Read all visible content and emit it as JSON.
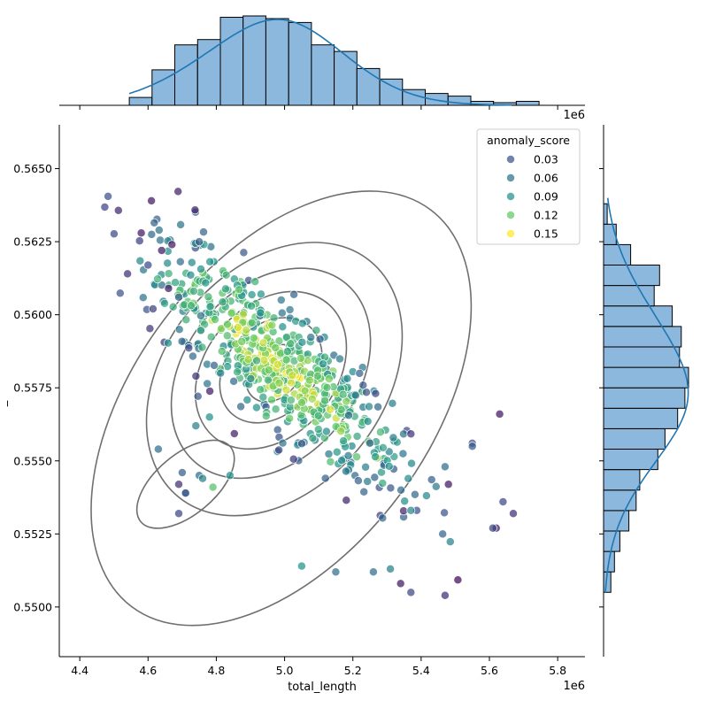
{
  "chart_data": {
    "type": "scatter",
    "title": "",
    "xlabel": "total_length",
    "ylabel": "_",
    "x_offset_text": "1e6",
    "top_offset_text": "1e6",
    "xlim": [
      4.34,
      5.88
    ],
    "ylim": [
      0.5483,
      0.5665
    ],
    "x_ticks": [
      4.4,
      4.6,
      4.8,
      5.0,
      5.2,
      5.4,
      5.6,
      5.8
    ],
    "x_tick_labels": [
      "4.4",
      "4.6",
      "4.8",
      "5.0",
      "5.2",
      "5.4",
      "5.6",
      "5.8"
    ],
    "y_ticks": [
      0.55,
      0.5525,
      0.555,
      0.5575,
      0.56,
      0.5625,
      0.565
    ],
    "y_tick_labels": [
      "0.5500",
      "0.5525",
      "0.5550",
      "0.5575",
      "0.5600",
      "0.5625",
      "0.5650"
    ],
    "hue_variable": "anomaly_score",
    "colormap": [
      "#440154",
      "#3b528b",
      "#21918c",
      "#5ec962",
      "#fde725"
    ],
    "legend": {
      "title": "anomaly_score",
      "position": "upper right",
      "entries": [
        {
          "label": "0.03",
          "color": "#3b528b"
        },
        {
          "label": "0.06",
          "color": "#2c728e"
        },
        {
          "label": "0.09",
          "color": "#21918c"
        },
        {
          "label": "0.12",
          "color": "#5ec962"
        },
        {
          "label": "0.15",
          "color": "#fde725"
        }
      ]
    },
    "marginal_x_hist": {
      "bin_start": 4.545,
      "bin_width": 0.0667,
      "counts": [
        6,
        27,
        46,
        50,
        67,
        68,
        66,
        63,
        46,
        41,
        28,
        20,
        12,
        9,
        7,
        3,
        2,
        3
      ]
    },
    "marginal_y_hist": {
      "bin_start": 0.5505,
      "bin_width": 0.0007,
      "counts": [
        4,
        6,
        9,
        14,
        18,
        20,
        30,
        34,
        41,
        45,
        47,
        42,
        43,
        38,
        28,
        31,
        15,
        7,
        2
      ]
    },
    "scatter_points": [
      {
        "x": 4.61,
        "y": 0.5639,
        "score": 0.03
      },
      {
        "x": 4.58,
        "y": 0.5628,
        "score": 0.03
      },
      {
        "x": 4.64,
        "y": 0.5622,
        "score": 0.03
      },
      {
        "x": 4.67,
        "y": 0.5624,
        "score": 0.03
      },
      {
        "x": 4.54,
        "y": 0.5614,
        "score": 0.04
      },
      {
        "x": 4.6,
        "y": 0.5617,
        "score": 0.05
      },
      {
        "x": 4.66,
        "y": 0.5609,
        "score": 0.03
      },
      {
        "x": 4.75,
        "y": 0.5625,
        "score": 0.06
      },
      {
        "x": 4.69,
        "y": 0.5606,
        "score": 0.06
      },
      {
        "x": 4.63,
        "y": 0.5554,
        "score": 0.07
      },
      {
        "x": 4.7,
        "y": 0.5546,
        "score": 0.06
      },
      {
        "x": 4.71,
        "y": 0.5539,
        "score": 0.06
      },
      {
        "x": 4.69,
        "y": 0.5532,
        "score": 0.05
      },
      {
        "x": 4.75,
        "y": 0.5545,
        "score": 0.07
      },
      {
        "x": 4.76,
        "y": 0.5544,
        "score": 0.08
      },
      {
        "x": 4.69,
        "y": 0.5542,
        "score": 0.04
      },
      {
        "x": 4.74,
        "y": 0.5562,
        "score": 0.08
      },
      {
        "x": 4.78,
        "y": 0.5565,
        "score": 0.09
      },
      {
        "x": 4.79,
        "y": 0.5541,
        "score": 0.12
      },
      {
        "x": 4.84,
        "y": 0.5545,
        "score": 0.09
      },
      {
        "x": 5.63,
        "y": 0.5566,
        "score": 0.03
      },
      {
        "x": 5.64,
        "y": 0.5536,
        "score": 0.05
      },
      {
        "x": 5.67,
        "y": 0.5532,
        "score": 0.04
      },
      {
        "x": 5.62,
        "y": 0.5527,
        "score": 0.03
      },
      {
        "x": 5.61,
        "y": 0.5527,
        "score": 0.05
      },
      {
        "x": 5.55,
        "y": 0.5556,
        "score": 0.05
      },
      {
        "x": 5.55,
        "y": 0.5555,
        "score": 0.06
      },
      {
        "x": 5.48,
        "y": 0.5542,
        "score": 0.03
      },
      {
        "x": 5.47,
        "y": 0.5548,
        "score": 0.07
      },
      {
        "x": 5.47,
        "y": 0.5504,
        "score": 0.04
      },
      {
        "x": 5.37,
        "y": 0.5505,
        "score": 0.05
      },
      {
        "x": 5.34,
        "y": 0.5508,
        "score": 0.03
      },
      {
        "x": 5.31,
        "y": 0.5513,
        "score": 0.08
      },
      {
        "x": 5.15,
        "y": 0.5512,
        "score": 0.07
      },
      {
        "x": 5.26,
        "y": 0.5512,
        "score": 0.07
      },
      {
        "x": 5.05,
        "y": 0.5514,
        "score": 0.09
      },
      {
        "x": 4.71,
        "y": 0.5539,
        "score": 0.06
      }
    ],
    "kde_levels": 6
  }
}
